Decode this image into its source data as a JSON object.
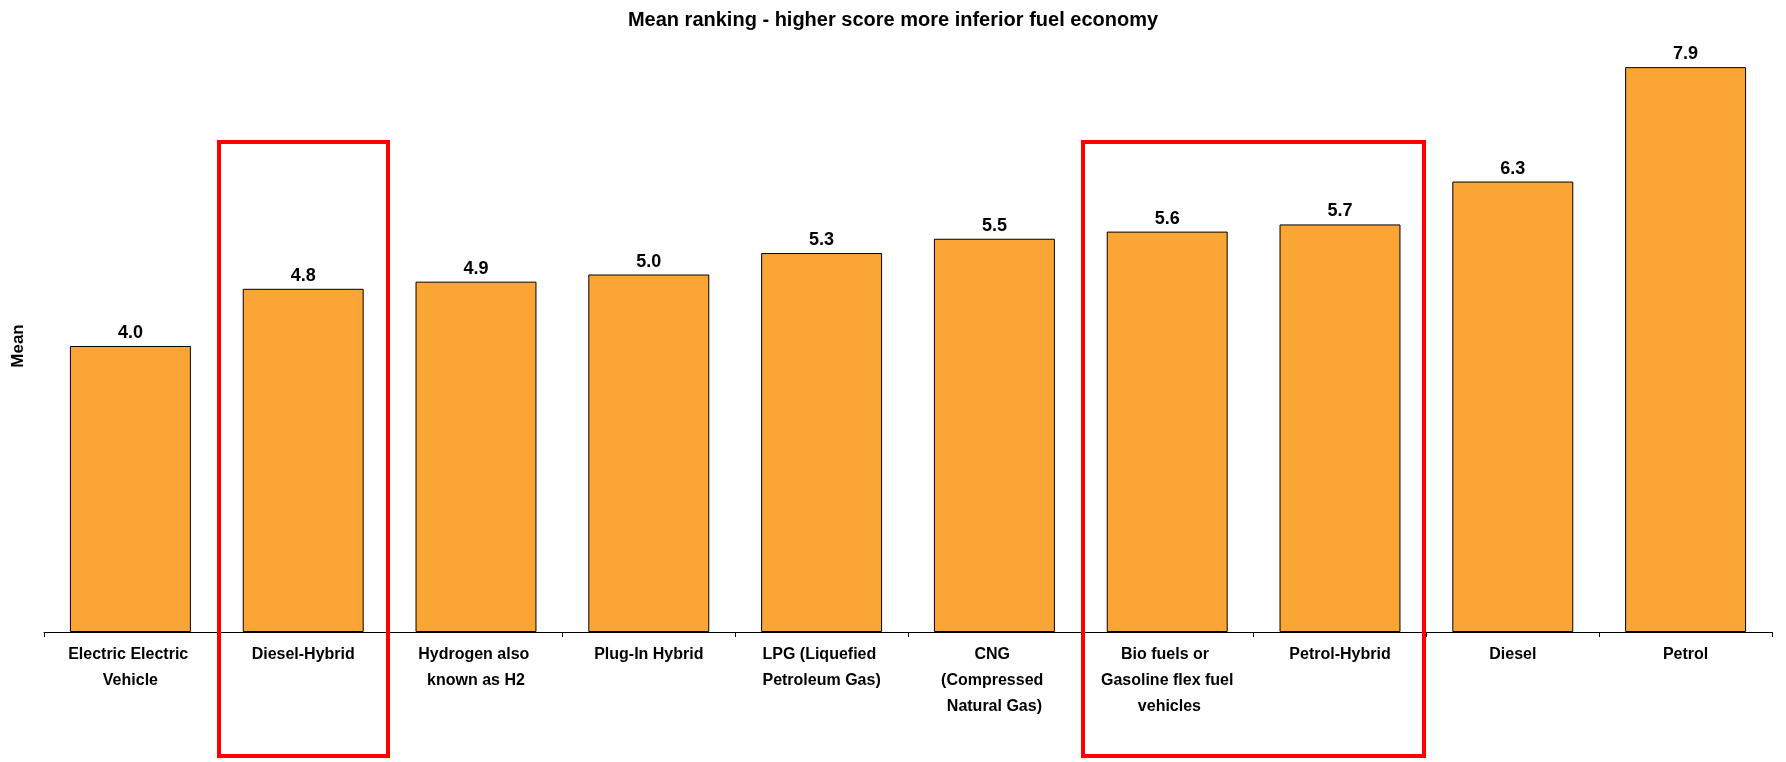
{
  "chart_data": {
    "type": "bar",
    "title": "Mean ranking - higher score more inferior fuel economy",
    "ylabel": "Mean",
    "categories": [
      "Electric Electric Vehicle",
      "Diesel-Hybrid",
      "Hydrogen also known as H2",
      "Plug-In Hybrid",
      "LPG (Liquefied Petroleum Gas)",
      "CNG (Compressed Natural Gas)",
      "Bio fuels or Gasoline flex fuel vehicles",
      "Petrol-Hybrid",
      "Diesel",
      "Petrol"
    ],
    "values": [
      4.0,
      4.8,
      4.9,
      5.0,
      5.3,
      5.5,
      5.6,
      5.7,
      6.3,
      7.9
    ],
    "value_labels": [
      "4.0",
      "4.8",
      "4.9",
      "5.0",
      "5.3",
      "5.5",
      "5.6",
      "5.7",
      "6.3",
      "7.9"
    ],
    "color": "#fba534"
  }
}
